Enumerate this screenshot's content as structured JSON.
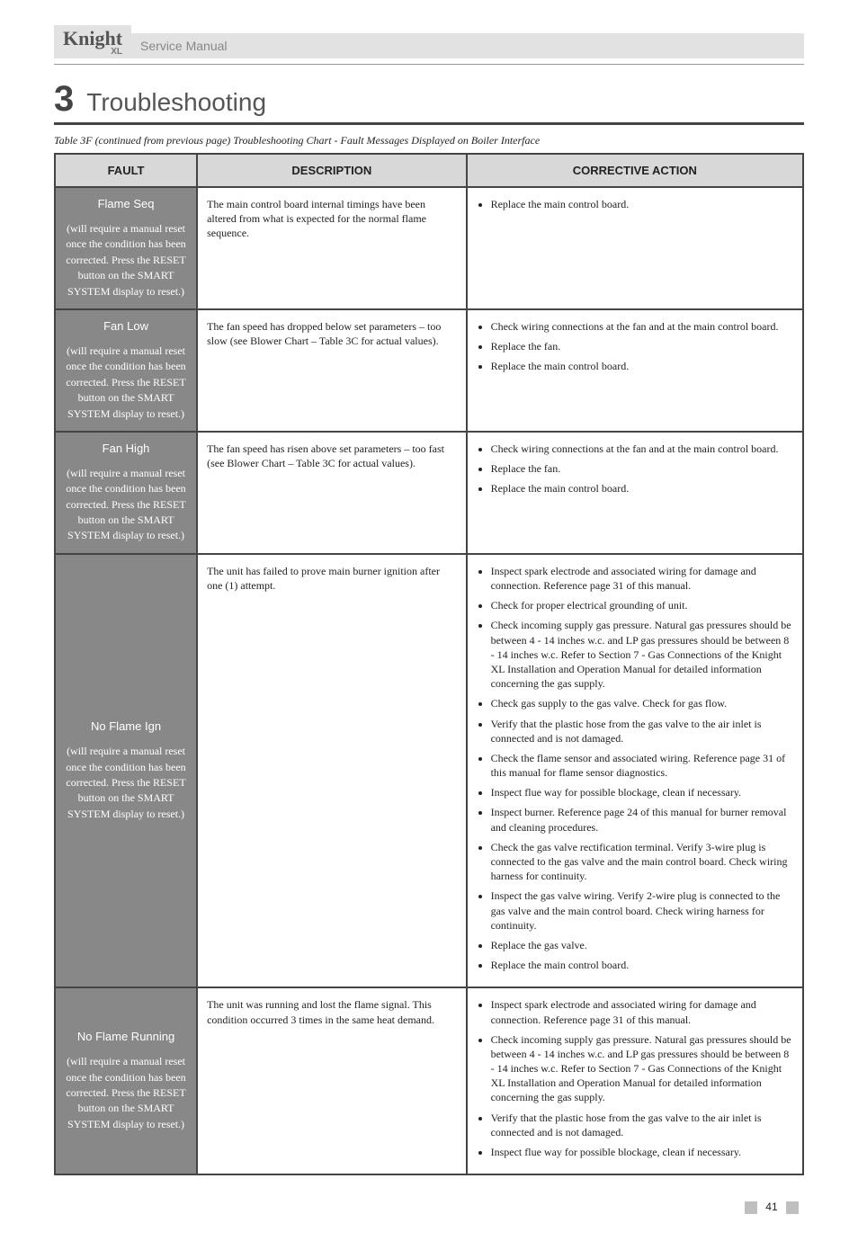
{
  "header": {
    "brand": "Knight",
    "brand_sub": "XL",
    "series": "Service Manual"
  },
  "section": {
    "number": "3",
    "title": "Troubleshooting"
  },
  "tableLabel": "Table 3F (continued from previous page) Troubleshooting Chart - Fault Messages Displayed on Boiler Interface",
  "columns": {
    "c1": "FAULT",
    "c2": "DESCRIPTION",
    "c3": "CORRECTIVE ACTION",
    "c1_width": "19%",
    "c2_width": "36%",
    "c3_width": "45%"
  },
  "rows": [
    {
      "fault": {
        "name": "Flame Seq",
        "note": "(will require a manual reset once the condition has been corrected. Press the RESET button on the SMART SYSTEM display to reset.)"
      },
      "desc": "The main control board internal timings have been altered from what is expected for the normal flame sequence.",
      "actions": [
        "Replace the main control board."
      ]
    },
    {
      "fault": {
        "name": "Fan Low",
        "note": "(will require a manual reset once the condition has been corrected. Press the RESET button on the SMART SYSTEM display to reset.)"
      },
      "desc": "The fan speed has dropped below set parameters – too slow (see Blower Chart – Table 3C for actual values).",
      "actions": [
        "Check wiring connections at the fan and at the main control board.",
        "Replace the fan.",
        "Replace the main control board."
      ]
    },
    {
      "fault": {
        "name": "Fan High",
        "note": "(will require a manual reset once the condition has been corrected. Press the RESET button on the SMART SYSTEM display to reset.)"
      },
      "desc": "The fan speed has risen above set parameters – too fast (see Blower Chart – Table 3C for actual values).",
      "actions": [
        "Check wiring connections at the fan and at the main control board.",
        "Replace the fan.",
        "Replace the main control board."
      ]
    },
    {
      "fault": {
        "name": "No Flame Ign",
        "note": "(will require a manual reset once the condition has been corrected. Press the RESET button on the SMART SYSTEM display to reset.)"
      },
      "desc": "The unit has failed to prove main burner ignition after one (1) attempt.",
      "actions": [
        "Inspect spark electrode and associated wiring for damage and connection. Reference page 31 of this manual.",
        "Check for proper electrical grounding of unit.",
        "Check incoming supply gas pressure. Natural gas pressures should be between 4 - 14 inches w.c. and LP gas pressures should be between 8 - 14 inches w.c. Refer to Section 7 - Gas Connections of the Knight XL Installation and Operation Manual for detailed information concerning the gas supply.",
        "Check gas supply to the gas valve. Check for gas flow.",
        "Verify that the plastic hose from the gas valve to the air inlet is connected and is not damaged.",
        "Check the flame sensor and associated wiring. Reference page 31 of this manual for flame sensor diagnostics.",
        "Inspect flue way for possible blockage, clean if necessary.",
        "Inspect burner. Reference page 24 of this manual for burner removal and cleaning procedures.",
        "Check the gas valve rectification terminal. Verify 3-wire plug is connected to the gas valve and the main control board. Check wiring harness for continuity.",
        "Inspect the gas valve wiring. Verify 2-wire plug is connected to the gas valve and the main control board. Check wiring harness for continuity.",
        "Replace the gas valve.",
        "Replace the main control board."
      ]
    },
    {
      "fault": {
        "name": "No Flame Running",
        "note": "(will require a manual reset once the condition has been corrected. Press the RESET button on the SMART SYSTEM display to reset.)"
      },
      "desc": "The unit was running and lost the flame signal. This condition occurred 3 times in the same heat demand.",
      "actions": [
        "Inspect spark electrode and associated wiring for damage and connection. Reference page 31 of this manual.",
        "Check incoming supply gas pressure. Natural gas pressures should be between 4 - 14 inches w.c. and LP gas pressures should be between 8 - 14 inches w.c. Refer to Section 7 - Gas Connections of the Knight XL Installation and Operation Manual for detailed information concerning the gas supply.",
        "Verify that the plastic hose from the gas valve to the air inlet is connected and is not damaged.",
        "Inspect flue way for possible blockage, clean if necessary."
      ]
    }
  ],
  "footer": {
    "page": "41"
  }
}
